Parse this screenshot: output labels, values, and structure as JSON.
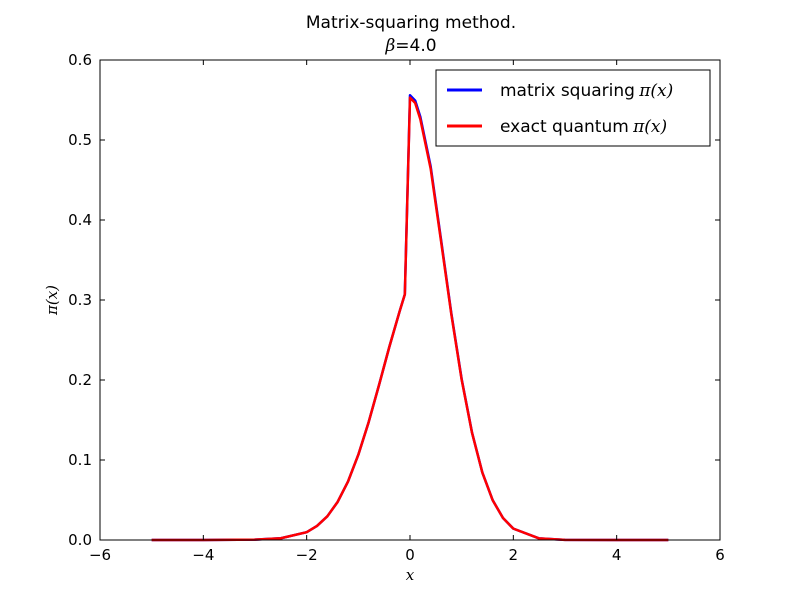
{
  "chart_data": {
    "type": "line",
    "title_line1": "Matrix-squaring method.",
    "title_line2_symbol": "β",
    "title_line2_value": "=4.0",
    "xlabel": "x",
    "ylabel": "π(x)",
    "xlim": [
      -6,
      6
    ],
    "ylim": [
      0.0,
      0.6
    ],
    "x_ticks": [
      -6,
      -4,
      -2,
      0,
      2,
      4,
      6
    ],
    "x_tick_labels": [
      "−6",
      "−4",
      "−2",
      "0",
      "2",
      "4",
      "6"
    ],
    "y_ticks": [
      0.0,
      0.1,
      0.2,
      0.3,
      0.4,
      0.5,
      0.6
    ],
    "y_tick_labels": [
      "0.0",
      "0.1",
      "0.2",
      "0.3",
      "0.4",
      "0.5",
      "0.6"
    ],
    "grid": false,
    "legend": {
      "placement": "top-right"
    },
    "series": [
      {
        "name": "matrix squaring π(x)",
        "legend_text": "matrix squaring",
        "legend_math": "π(x)",
        "color": "#0000ff",
        "x": [
          -5.0,
          -4.0,
          -3.0,
          -2.5,
          -2.0,
          -1.8,
          -1.6,
          -1.4,
          -1.2,
          -1.0,
          -0.8,
          -0.6,
          -0.4,
          -0.2,
          -0.1,
          0.0,
          0.1,
          0.2,
          0.4,
          0.6,
          0.8,
          1.0,
          1.2,
          1.4,
          1.6,
          1.8,
          2.0,
          2.5,
          3.0,
          4.0,
          5.0
        ],
        "y": [
          0.0,
          0.0,
          0.0004,
          0.0022,
          0.0098,
          0.0176,
          0.0296,
          0.0477,
          0.0731,
          0.1066,
          0.1474,
          0.1936,
          0.2414,
          0.286,
          0.307,
          0.556,
          0.5493,
          0.5289,
          0.4668,
          0.3758,
          0.2834,
          0.2011,
          0.1345,
          0.0845,
          0.0498,
          0.0275,
          0.0142,
          0.002,
          0.0002,
          0.0,
          0.0
        ]
      },
      {
        "name": "exact quantum π(x)",
        "legend_text": "exact quantum",
        "legend_math": "π(x)",
        "color": "#ff0000",
        "x": [
          -5.0,
          -4.0,
          -3.0,
          -2.5,
          -2.0,
          -1.8,
          -1.6,
          -1.4,
          -1.2,
          -1.0,
          -0.8,
          -0.6,
          -0.4,
          -0.2,
          -0.1,
          0.0,
          0.1,
          0.2,
          0.4,
          0.6,
          0.8,
          1.0,
          1.2,
          1.4,
          1.6,
          1.8,
          2.0,
          2.5,
          3.0,
          4.0,
          5.0
        ],
        "y": [
          0.0,
          0.0,
          0.0004,
          0.0022,
          0.0098,
          0.0176,
          0.0296,
          0.0477,
          0.0731,
          0.1066,
          0.1474,
          0.1936,
          0.2414,
          0.286,
          0.307,
          0.553,
          0.5463,
          0.5259,
          0.4641,
          0.3738,
          0.2821,
          0.2003,
          0.1341,
          0.0843,
          0.0497,
          0.0275,
          0.0142,
          0.002,
          0.0002,
          0.0,
          0.0
        ]
      }
    ]
  }
}
